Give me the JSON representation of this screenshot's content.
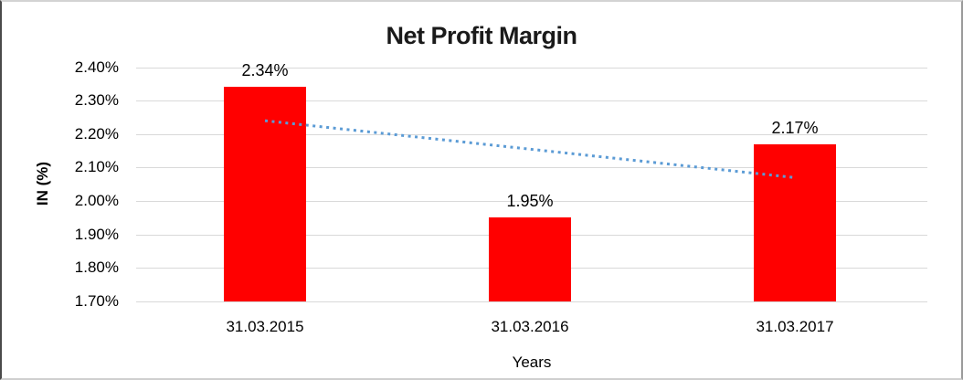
{
  "chart_data": {
    "type": "bar",
    "title": "Net Profit Margin",
    "xlabel": "Years",
    "ylabel": "IN (%)",
    "categories": [
      "31.03.2015",
      "31.03.2016",
      "31.03.2017"
    ],
    "values": [
      2.34,
      1.95,
      2.17
    ],
    "data_labels": [
      "2.34%",
      "1.95%",
      "2.17%"
    ],
    "y_ticks": [
      "2.40%",
      "2.30%",
      "2.20%",
      "2.10%",
      "2.00%",
      "1.90%",
      "1.80%",
      "1.70%"
    ],
    "ylim": [
      1.7,
      2.4
    ],
    "y_step": 0.1,
    "grid": true,
    "legend": "none",
    "bar_color": "#ff0000",
    "gridline_color": "#d9d9d9",
    "trendline": {
      "type": "linear",
      "style": "dotted",
      "color": "#5b9bd5",
      "start_value": 2.24,
      "end_value": 2.07
    }
  }
}
